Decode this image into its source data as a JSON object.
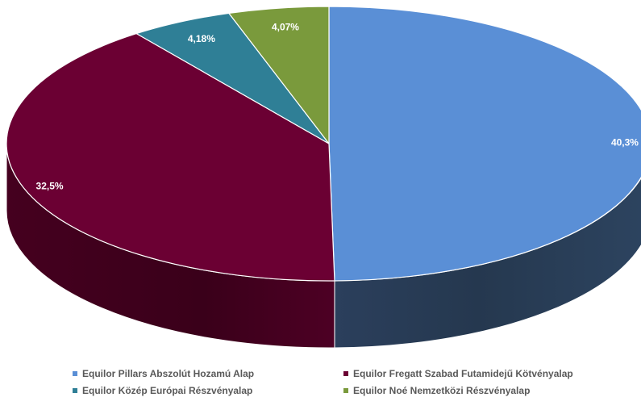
{
  "chart_data": {
    "type": "pie",
    "style": "3d",
    "title": "",
    "legend_position": "bottom",
    "slices": [
      {
        "label": "Equilor Pillars Abszolút Hozamú Alap",
        "value": 40.3,
        "display": "40,3%",
        "color": "#5a8fd6"
      },
      {
        "label": "Equilor Fregatt Szabad Futamidejű Kötvényalap",
        "value": 32.5,
        "display": "32,5%",
        "color": "#6b0033"
      },
      {
        "label": "Equilor Közép Európai Részvényalap",
        "value": 4.18,
        "display": "4,18%",
        "color": "#2f7f96"
      },
      {
        "label": "Equilor Noé Nemzetközi Részvényalap",
        "value": 4.07,
        "display": "4,07%",
        "color": "#7a9a3c"
      }
    ]
  }
}
